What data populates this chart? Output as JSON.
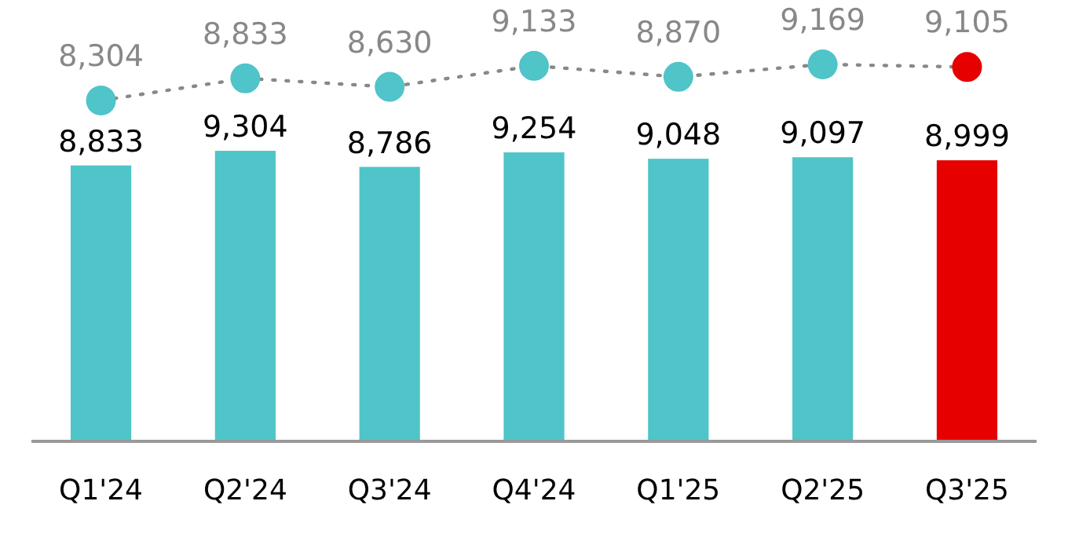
{
  "chart_data": {
    "type": "bar",
    "categories": [
      "Q1'24",
      "Q2'24",
      "Q3'24",
      "Q4'24",
      "Q1'25",
      "Q2'25",
      "Q3'25"
    ],
    "ylim": [
      0,
      14160
    ],
    "y2lim": [
      180,
      10710
    ],
    "tick_labels": "x",
    "series": [
      {
        "colors": [
          "#4fc4c9",
          "#4fc4c9",
          "#4fc4c9",
          "#4fc4c9",
          "#4fc4c9",
          "#4fc4c9",
          "#e60000"
        ],
        "values": [
          8833,
          9304,
          8786,
          9254,
          9048,
          9097,
          8999
        ],
        "value_labels": [
          "8,833",
          "9,304",
          "8,786",
          "9,254",
          "9,048",
          "9,097",
          "8,999"
        ]
      },
      {
        "type": "line",
        "axis": "y2",
        "marker": "circle",
        "line_style": "dotted",
        "colors": [
          "#4fc4c9",
          "#4fc4c9",
          "#4fc4c9",
          "#4fc4c9",
          "#4fc4c9",
          "#4fc4c9",
          "#e60000"
        ],
        "values": [
          8304,
          8833,
          8630,
          9133,
          8870,
          9169,
          9105
        ],
        "value_labels": [
          "8,304",
          "8,833",
          "8,630",
          "9,133",
          "8,870",
          "9,169",
          "9,105"
        ]
      }
    ]
  }
}
